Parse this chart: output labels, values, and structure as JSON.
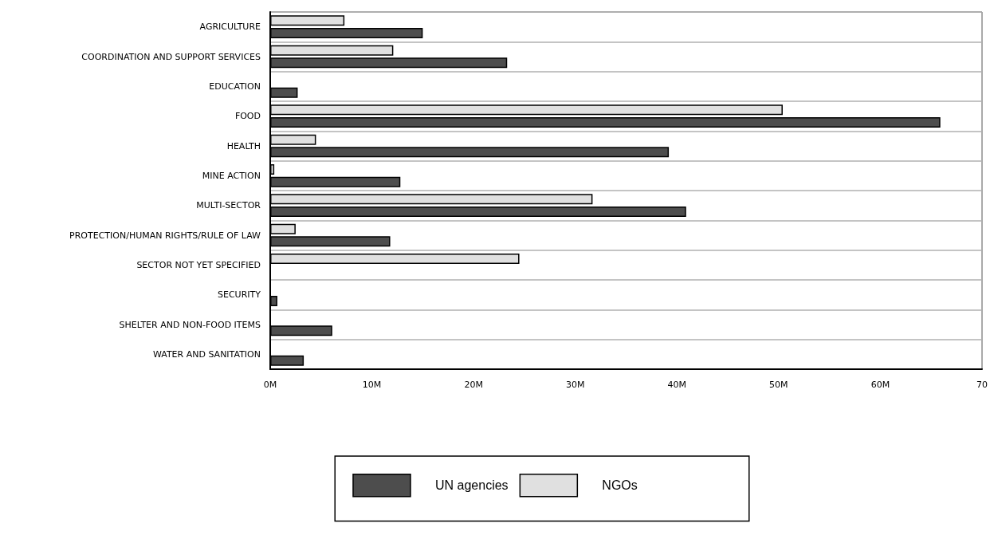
{
  "chart_data": {
    "type": "bar",
    "orientation": "horizontal",
    "categories": [
      "AGRICULTURE",
      "COORDINATION AND SUPPORT SERVICES",
      "EDUCATION",
      "FOOD",
      "HEALTH",
      "MINE ACTION",
      "MULTI-SECTOR",
      "PROTECTION/HUMAN RIGHTS/RULE OF LAW",
      "SECTOR NOT YET SPECIFIED",
      "SECURITY",
      "SHELTER AND NON-FOOD ITEMS",
      "WATER AND SANITATION"
    ],
    "series": [
      {
        "name": "NGOs",
        "color": "#e0e0e0",
        "values": [
          7.3,
          12.1,
          null,
          50.4,
          4.5,
          0.4,
          31.7,
          2.5,
          24.5,
          null,
          null,
          null
        ]
      },
      {
        "name": "UN agencies",
        "color": "#4d4d4d",
        "values": [
          15.0,
          23.3,
          2.7,
          65.9,
          39.2,
          12.8,
          40.9,
          11.8,
          null,
          0.7,
          6.1,
          3.3
        ]
      }
    ],
    "xlim": [
      0,
      70
    ],
    "xticks": [
      {
        "value": 0,
        "label": "0M"
      },
      {
        "value": 10,
        "label": "10M"
      },
      {
        "value": 20,
        "label": "20M"
      },
      {
        "value": 30,
        "label": "30M"
      },
      {
        "value": 40,
        "label": "40M"
      },
      {
        "value": 50,
        "label": "50M"
      },
      {
        "value": 60,
        "label": "60M"
      },
      70
    ],
    "grid": "y",
    "legend": "bottom"
  }
}
